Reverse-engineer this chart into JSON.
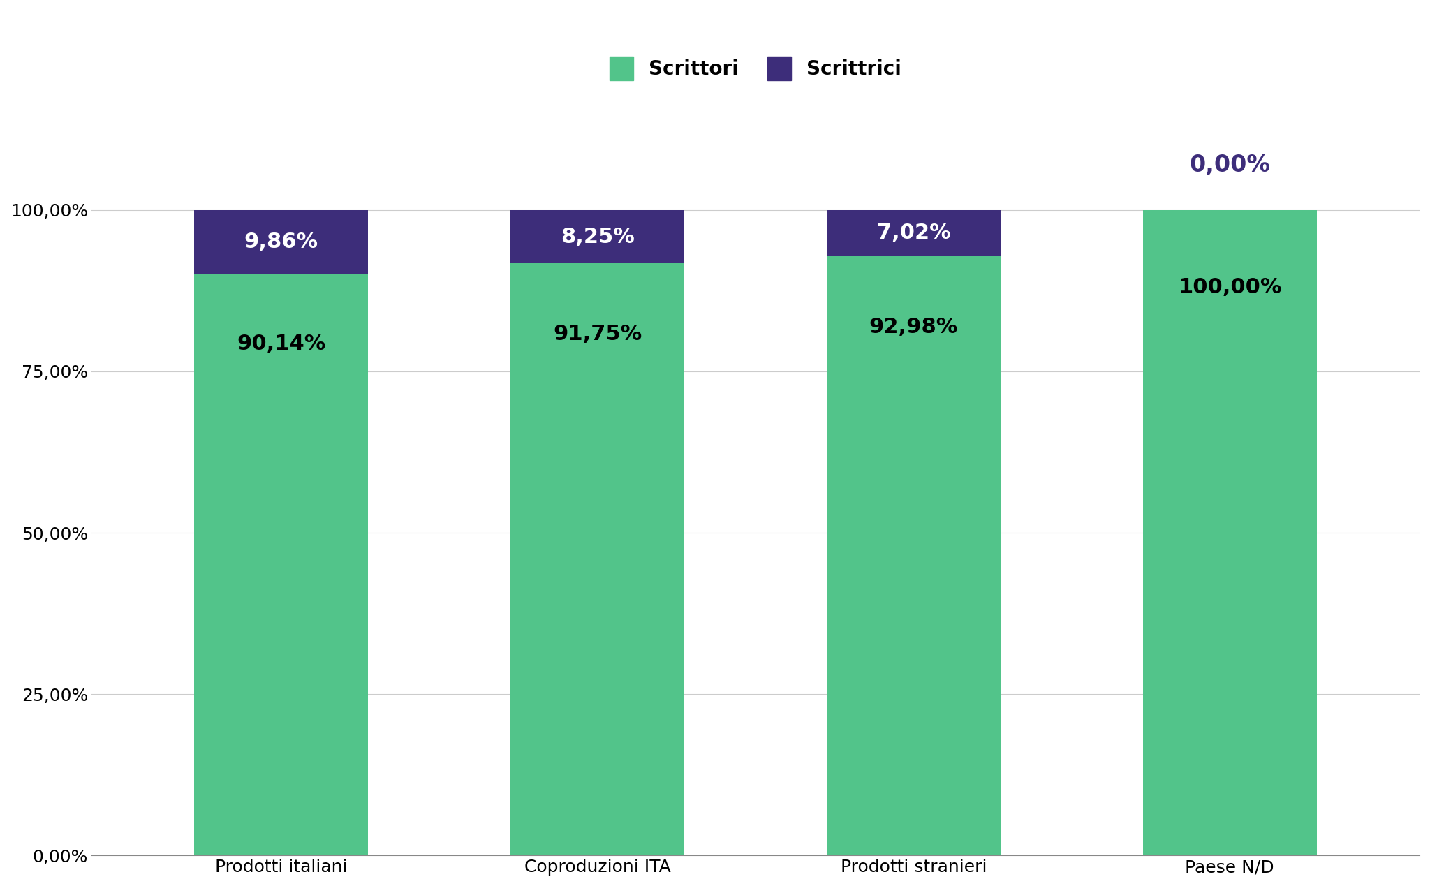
{
  "categories": [
    "Prodotti italiani",
    "Coproduzioni ITA",
    "Prodotti stranieri",
    "Paese N/D"
  ],
  "scrittori": [
    90.14,
    91.75,
    92.98,
    100.0
  ],
  "scrittrici": [
    9.86,
    8.25,
    7.02,
    0.0
  ],
  "scrittori_labels": [
    "90,14%",
    "91,75%",
    "92,98%",
    "100,00%"
  ],
  "scrittrici_labels": [
    "9,86%",
    "8,25%",
    "7,02%",
    "0,00%"
  ],
  "color_scrittori": "#52c48a",
  "color_scrittrici": "#3d2d7a",
  "background_color": "#ffffff",
  "grid_color": "#cccccc",
  "yticks": [
    0,
    25,
    50,
    75,
    100
  ],
  "ytick_labels": [
    "0,00%",
    "25,00%",
    "50,00%",
    "75,00%",
    "100,00%"
  ],
  "legend_scrittori": "Scrittori",
  "legend_scrittrici": "Scrittrici",
  "zero_percent_color": "#3d2d7a",
  "zero_percent_fontsize": 24,
  "scrittori_label_fontsize": 22,
  "scrittrici_label_fontsize": 22,
  "legend_fontsize": 20,
  "tick_fontsize": 18,
  "bar_width": 0.55
}
